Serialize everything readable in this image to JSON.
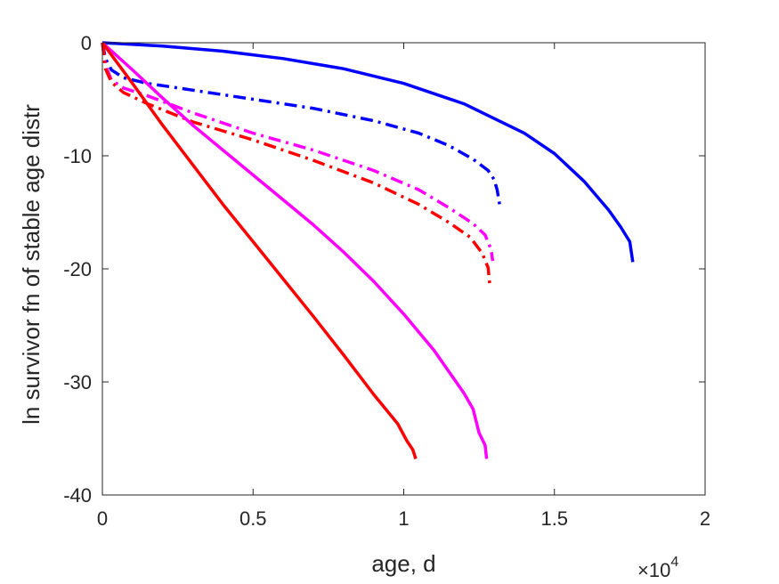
{
  "chart_data": {
    "type": "line",
    "title": "",
    "xlabel": "age, d",
    "ylabel": "ln survivor fn of stable age distr",
    "xlim": [
      0,
      20000
    ],
    "ylim": [
      -40,
      0
    ],
    "x_ticks": [
      0,
      5000,
      10000,
      15000,
      20000
    ],
    "x_tick_labels": [
      "0",
      "0.5",
      "1",
      "1.5",
      "2"
    ],
    "x_exponent_base": "×10",
    "x_exponent_power": "4",
    "y_ticks": [
      -40,
      -30,
      -20,
      -10,
      0
    ],
    "y_tick_labels": [
      "-40",
      "-30",
      "-20",
      "-10",
      "0"
    ],
    "grid": false,
    "legend": "none",
    "series": [
      {
        "color": "#0000ff",
        "style": "solid",
        "points": [
          [
            0,
            0
          ],
          [
            2000,
            -0.3
          ],
          [
            4000,
            -0.75
          ],
          [
            6000,
            -1.4
          ],
          [
            8000,
            -2.3
          ],
          [
            10000,
            -3.6
          ],
          [
            12000,
            -5.4
          ],
          [
            14000,
            -8
          ],
          [
            15000,
            -9.8
          ],
          [
            16000,
            -12.3
          ],
          [
            16800,
            -14.8
          ],
          [
            17200,
            -16.3
          ],
          [
            17500,
            -17.6
          ],
          [
            17600,
            -19.4
          ]
        ]
      },
      {
        "color": "#0000ff",
        "style": "dashdot",
        "points": [
          [
            0,
            0
          ],
          [
            100,
            -1.4
          ],
          [
            300,
            -2.4
          ],
          [
            700,
            -3.1
          ],
          [
            1500,
            -3.6
          ],
          [
            3000,
            -4.2
          ],
          [
            5000,
            -5
          ],
          [
            7000,
            -5.8
          ],
          [
            9000,
            -6.9
          ],
          [
            10500,
            -8
          ],
          [
            11500,
            -9.1
          ],
          [
            12300,
            -10.3
          ],
          [
            12800,
            -11.3
          ],
          [
            13000,
            -12.1
          ],
          [
            13100,
            -13
          ],
          [
            13200,
            -14.6
          ]
        ]
      },
      {
        "color": "#ff00ff",
        "style": "dashdot",
        "points": [
          [
            0,
            0
          ],
          [
            100,
            -2
          ],
          [
            300,
            -3.3
          ],
          [
            700,
            -4
          ],
          [
            1500,
            -4.7
          ],
          [
            3000,
            -6.2
          ],
          [
            5000,
            -8
          ],
          [
            7000,
            -9.5
          ],
          [
            9000,
            -11.3
          ],
          [
            10500,
            -13
          ],
          [
            11500,
            -14.6
          ],
          [
            12300,
            -16
          ],
          [
            12700,
            -17
          ],
          [
            12900,
            -18.3
          ],
          [
            12950,
            -19.3
          ]
        ]
      },
      {
        "color": "#ff0000",
        "style": "dashdot",
        "points": [
          [
            0,
            0
          ],
          [
            100,
            -2.3
          ],
          [
            300,
            -3.5
          ],
          [
            700,
            -4.4
          ],
          [
            1500,
            -5.4
          ],
          [
            3000,
            -7
          ],
          [
            5000,
            -8.6
          ],
          [
            7000,
            -10.4
          ],
          [
            9000,
            -12.4
          ],
          [
            10500,
            -14.3
          ],
          [
            11500,
            -15.9
          ],
          [
            12200,
            -17.2
          ],
          [
            12600,
            -18.6
          ],
          [
            12800,
            -19.9
          ],
          [
            12850,
            -21.3
          ]
        ]
      },
      {
        "color": "#ff00ff",
        "style": "solid",
        "points": [
          [
            0,
            0
          ],
          [
            1000,
            -2.4
          ],
          [
            2000,
            -4.9
          ],
          [
            3000,
            -7.3
          ],
          [
            4000,
            -9.5
          ],
          [
            5000,
            -11.7
          ],
          [
            6000,
            -13.9
          ],
          [
            7000,
            -16.1
          ],
          [
            8000,
            -18.5
          ],
          [
            9000,
            -21.1
          ],
          [
            10000,
            -24
          ],
          [
            11000,
            -27.2
          ],
          [
            12000,
            -31
          ],
          [
            12300,
            -32.4
          ],
          [
            12500,
            -34.5
          ],
          [
            12700,
            -35.6
          ],
          [
            12750,
            -36.8
          ]
        ]
      },
      {
        "color": "#ff0000",
        "style": "solid",
        "points": [
          [
            0,
            0
          ],
          [
            1000,
            -3.6
          ],
          [
            2000,
            -7.3
          ],
          [
            3000,
            -10.8
          ],
          [
            4000,
            -14.3
          ],
          [
            5000,
            -17.6
          ],
          [
            6000,
            -20.9
          ],
          [
            7000,
            -24.2
          ],
          [
            8000,
            -27.6
          ],
          [
            9000,
            -31.1
          ],
          [
            9800,
            -33.7
          ],
          [
            10100,
            -35.2
          ],
          [
            10300,
            -36
          ],
          [
            10400,
            -36.8
          ]
        ]
      }
    ]
  }
}
